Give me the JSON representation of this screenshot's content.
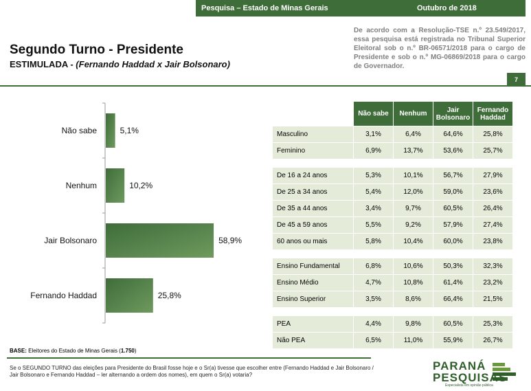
{
  "header": {
    "left": "Pesquisa – Estado de Minas Gerais",
    "right": "Outubro de 2018"
  },
  "title": "Segundo Turno - Presidente",
  "subtitle_prefix": "ESTIMULADA - ",
  "subtitle_italic": "(Fernando Haddad x Jair Bolsonaro)",
  "legal": "De acordo com a Resolução-TSE n.º 23.549/2017, essa pesquisa está registrada no Tribunal Superior Eleitoral sob o n.º BR-06571/2018 para o cargo de Presidente e sob o n.º MG-06869/2018 para o cargo de Governador.",
  "page_number": "7",
  "chart_data": {
    "type": "bar",
    "orientation": "horizontal",
    "categories": [
      "Não sabe",
      "Nenhum",
      "Jair Bolsonaro",
      "Fernando Haddad"
    ],
    "values": [
      5.1,
      10.2,
      58.9,
      25.8
    ],
    "value_labels": [
      "5,1%",
      "10,2%",
      "58,9%",
      "25,8%"
    ],
    "color": "#3f6d3a"
  },
  "table": {
    "headers": [
      "",
      "Não sabe",
      "Nenhum",
      "Jair Bolsonaro",
      "Fernando Haddad"
    ],
    "groups": [
      [
        [
          "Masculino",
          "3,1%",
          "6,4%",
          "64,6%",
          "25,8%"
        ],
        [
          "Feminino",
          "6,9%",
          "13,7%",
          "53,6%",
          "25,7%"
        ]
      ],
      [
        [
          "De 16 a 24 anos",
          "5,3%",
          "10,1%",
          "56,7%",
          "27,9%"
        ],
        [
          "De 25 a 34 anos",
          "5,4%",
          "12,0%",
          "59,0%",
          "23,6%"
        ],
        [
          "De 35 a 44 anos",
          "3,4%",
          "9,7%",
          "60,5%",
          "26,4%"
        ],
        [
          "De 45 a 59 anos",
          "5,5%",
          "9,2%",
          "57,9%",
          "27,4%"
        ],
        [
          "60 anos ou mais",
          "5,8%",
          "10,4%",
          "60,0%",
          "23,8%"
        ]
      ],
      [
        [
          "Ensino Fundamental",
          "6,8%",
          "10,6%",
          "50,3%",
          "32,3%"
        ],
        [
          "Ensino Médio",
          "4,7%",
          "10,8%",
          "61,4%",
          "23,2%"
        ],
        [
          "Ensino Superior",
          "3,5%",
          "8,6%",
          "66,4%",
          "21,5%"
        ]
      ],
      [
        [
          "PEA",
          "4,4%",
          "9,8%",
          "60,5%",
          "25,3%"
        ],
        [
          "Não PEA",
          "6,5%",
          "11,0%",
          "55,9%",
          "26,7%"
        ]
      ]
    ]
  },
  "base": {
    "label": "BASE:",
    "text": " Eleitores do Estado de Minas Gerais (",
    "count": "1.750",
    "close": ")"
  },
  "question": "Se o SEGUNDO TURNO das eleições para Presidente do Brasil fosse hoje e o Sr(a) tivesse que escolher entre (Fernando Haddad e Jair Bolsonaro / Jair Bolsonaro e Fernando Haddad – ler alternando a ordem dos nomes), em quem o Sr(a) votaria?",
  "logo": {
    "line1": "PARANÁ",
    "line2": "PESQUISAS",
    "tagline": "Especialista em opinião pública"
  }
}
